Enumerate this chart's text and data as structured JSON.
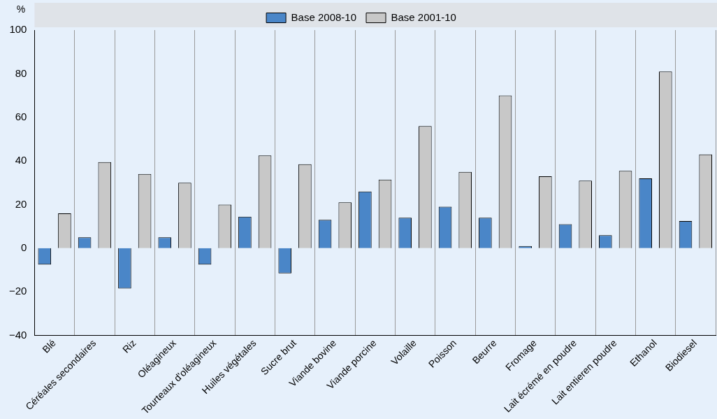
{
  "chart_data": {
    "type": "bar",
    "ylabel": "%",
    "categories": [
      "Blé",
      "Céréales secondaires",
      "Riz",
      "Oléagineux",
      "Tourteaux d'oléagineux",
      "Huiles végétales",
      "Sucre brut",
      "Viande bovine",
      "Viande porcine",
      "Volaille",
      "Poisson",
      "Beurre",
      "Fromage",
      "Lait écrémé en poudre",
      "Lait entieren poudre",
      "Ethanol",
      "Biodiesel"
    ],
    "series": [
      {
        "name": "Base 2008-10",
        "color": "#4a86c8",
        "values": [
          -7.5,
          5,
          -18.5,
          5,
          -7.5,
          14.5,
          -11.5,
          13,
          26,
          14,
          19,
          14,
          1,
          11,
          6,
          32,
          12.5
        ]
      },
      {
        "name": "Base 2001-10",
        "color": "#c8c8c8",
        "values": [
          16,
          39.5,
          34,
          30,
          20,
          42.5,
          38.5,
          21,
          31.5,
          56,
          35,
          70,
          33,
          31,
          35.5,
          81,
          43
        ]
      }
    ],
    "ylim": [
      -40,
      100
    ],
    "yticks": [
      -40,
      -20,
      0,
      20,
      40,
      60,
      80,
      100
    ],
    "grid": "x",
    "legend": "top"
  }
}
